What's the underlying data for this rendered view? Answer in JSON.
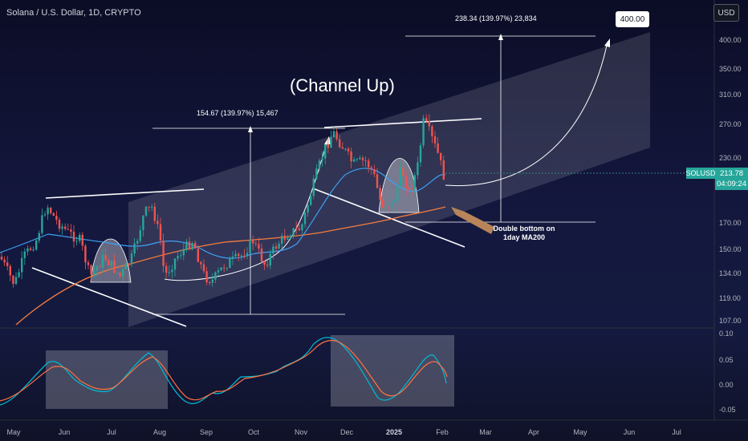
{
  "header": {
    "symbol_line": "Solana / U.S. Dollar, 1D, CRYPTO",
    "currency_button": "USD"
  },
  "price_axis": {
    "labels": [
      "400.00",
      "350.00",
      "310.00",
      "270.00",
      "230.00",
      "170.00",
      "150.00",
      "134.00",
      "119.00",
      "107.00"
    ]
  },
  "indicator_axis": {
    "labels": [
      "0.10",
      "0.05",
      "0.00",
      "-0.05"
    ]
  },
  "time_axis": {
    "labels": [
      "May",
      "Jun",
      "Jul",
      "Aug",
      "Sep",
      "Oct",
      "Nov",
      "Dec",
      "2025",
      "Feb",
      "Mar",
      "Apr",
      "May",
      "Jun",
      "Jul"
    ],
    "year_label": "2025"
  },
  "last_price": {
    "symbol": "SOLUSD",
    "price": "213.78",
    "countdown": "04:09:24"
  },
  "annotations": {
    "title": "(Channel Up)",
    "measure_1": "154.67 (139.97%) 15,467",
    "measure_2": "238.34 (139.97%) 23,834",
    "target": "400.00",
    "note": "Double bottom on 1day MA200"
  },
  "colors": {
    "up_candle": "#26a69a",
    "down_candle": "#ef5350",
    "ma50": "#2196f3",
    "ma200": "#f57c3f",
    "osc_fast": "#00bcd4",
    "osc_slow": "#ff7043",
    "channel": "#e8eaf6",
    "note_arrow": "#b8845a"
  }
}
